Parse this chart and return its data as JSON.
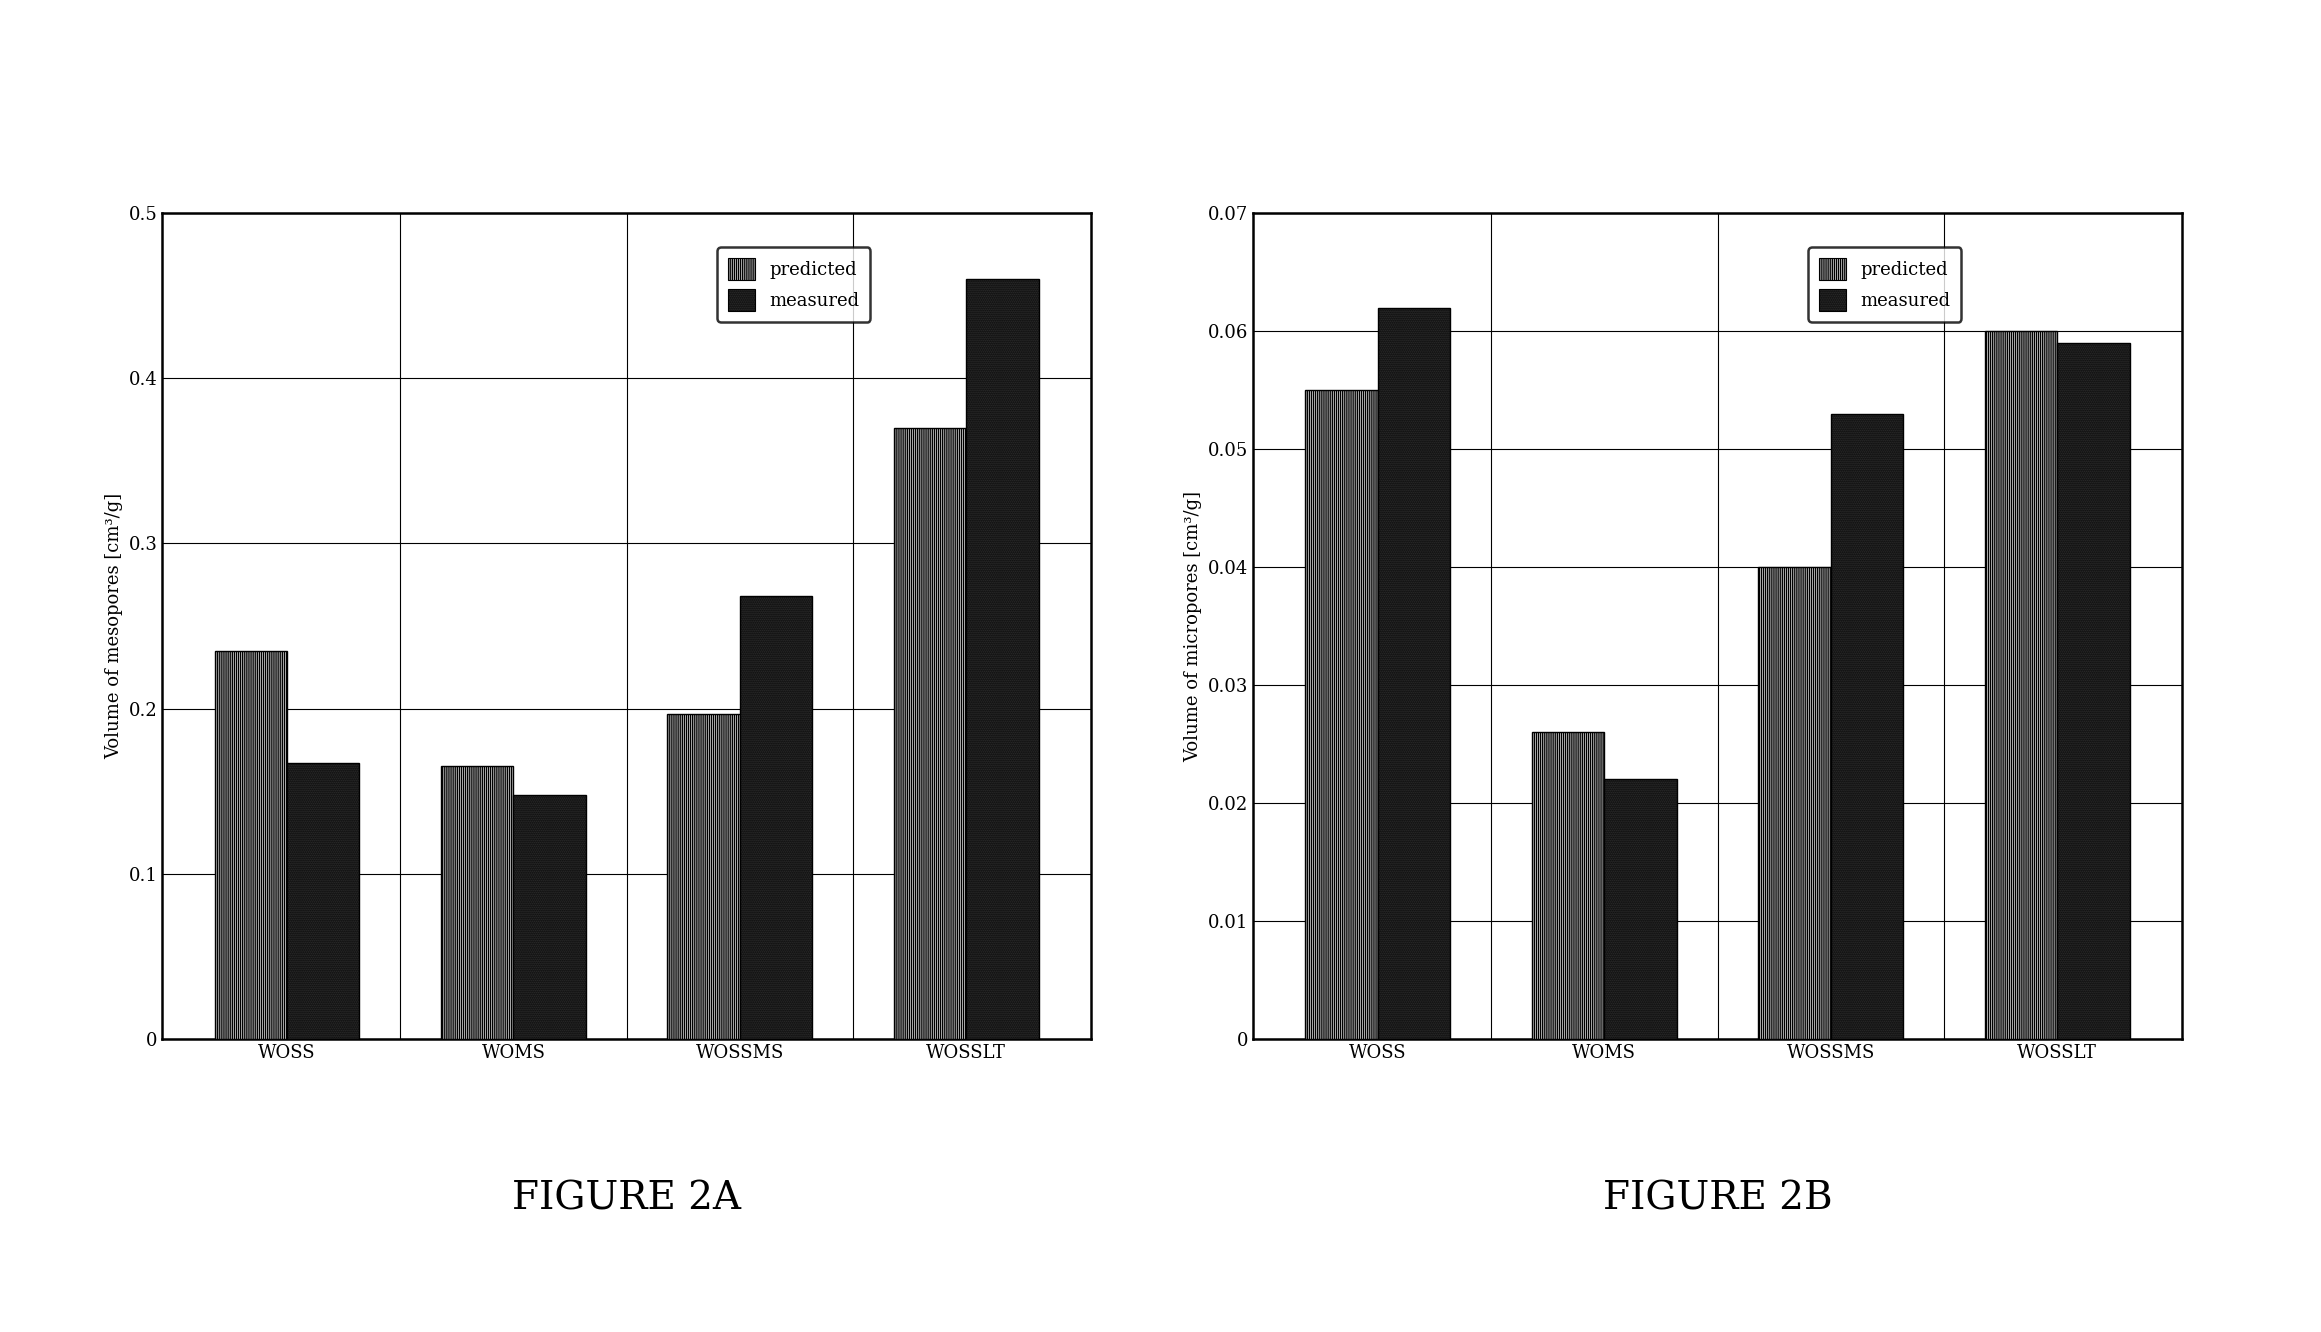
{
  "fig2a": {
    "ylabel": "Volume of mesopores [cm³/g]",
    "categories": [
      "WOSS",
      "WOMS",
      "WOSSMS",
      "WOSSLT"
    ],
    "predicted": [
      0.235,
      0.165,
      0.197,
      0.37
    ],
    "measured": [
      0.167,
      0.148,
      0.268,
      0.46
    ],
    "ylim": [
      0,
      0.5
    ],
    "yticks": [
      0.0,
      0.1,
      0.2,
      0.3,
      0.4,
      0.5
    ],
    "ytick_labels": [
      "0",
      "0.1",
      "0.2",
      "0.3",
      "0.4",
      "0.5"
    ],
    "caption": "FIGURE 2A"
  },
  "fig2b": {
    "ylabel": "Volume of micropores [cm³/g]",
    "categories": [
      "WOSS",
      "WOMS",
      "WOSSMS",
      "WOSSLT"
    ],
    "predicted": [
      0.055,
      0.026,
      0.04,
      0.06
    ],
    "measured": [
      0.062,
      0.022,
      0.053,
      0.059
    ],
    "ylim": [
      0,
      0.07
    ],
    "yticks": [
      0.0,
      0.01,
      0.02,
      0.03,
      0.04,
      0.05,
      0.06,
      0.07
    ],
    "ytick_labels": [
      "0",
      "0.01",
      "0.02",
      "0.03",
      "0.04",
      "0.05",
      "0.06",
      "0.07"
    ],
    "caption": "FIGURE 2B"
  },
  "predicted_hatch": "||||||||",
  "measured_hatch": "........",
  "measured_color": "#333333",
  "predicted_facecolor": "#f0f0f0",
  "bg_color": "#ffffff",
  "bar_edge_color": "#000000",
  "bar_width": 0.32,
  "legend_fontsize": 13,
  "tick_fontsize": 13,
  "ylabel_fontsize": 13,
  "caption_fontsize": 28
}
